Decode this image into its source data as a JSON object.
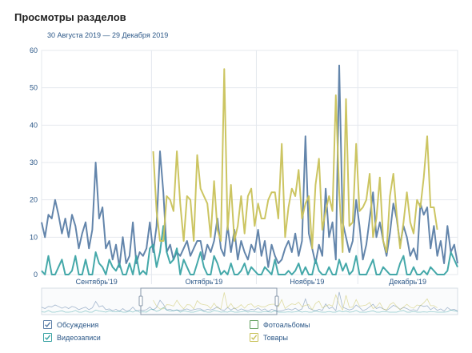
{
  "header": {
    "title": "Просмотры разделов",
    "period": "30 Августа 2019 — 29 Декабря 2019"
  },
  "legend": {
    "items": [
      {
        "label": "Обсуждения",
        "checked": true,
        "color": "#5b7ea7"
      },
      {
        "label": "Видеозаписи",
        "checked": true,
        "color": "#3aa3a4"
      },
      {
        "label": "Фотоальбомы",
        "checked": false,
        "color": "#62a05e"
      },
      {
        "label": "Товары",
        "checked": true,
        "color": "#c9c25a"
      }
    ]
  },
  "chart_data": {
    "type": "line",
    "ylim": [
      0,
      60
    ],
    "yticks": [
      0,
      10,
      20,
      30,
      40,
      50,
      60
    ],
    "month_labels": [
      "Сентябрь'19",
      "Октябрь'19",
      "Ноябрь'19",
      "Декабрь'19"
    ],
    "grid": true,
    "series": [
      {
        "name": "Обсуждения",
        "color": "#5b7ea7",
        "values": [
          14,
          10,
          16,
          15,
          20,
          16,
          11,
          15,
          10,
          16,
          13,
          7,
          11,
          14,
          7,
          12,
          30,
          15,
          18,
          7,
          9,
          4,
          8,
          2,
          10,
          3,
          5,
          14,
          3,
          6,
          5,
          7,
          14,
          6,
          13,
          33,
          22,
          6,
          8,
          4,
          6,
          5,
          7,
          9,
          5,
          7,
          9,
          9,
          4,
          8,
          6,
          9,
          15,
          7,
          5,
          13,
          6,
          12,
          4,
          9,
          6,
          4,
          8,
          6,
          12,
          5,
          9,
          2,
          8,
          5,
          3,
          4,
          7,
          9,
          6,
          11,
          5,
          9,
          37,
          11,
          7,
          3,
          8,
          5,
          23,
          10,
          14,
          4,
          56,
          14,
          10,
          6,
          9,
          20,
          13,
          4,
          8,
          15,
          22,
          10,
          14,
          9,
          5,
          11,
          19,
          15,
          8,
          13,
          10,
          5,
          7,
          4,
          19,
          16,
          18,
          7,
          13,
          5,
          9,
          3,
          13,
          6,
          8,
          3
        ]
      },
      {
        "name": "Видеозаписи",
        "color": "#3aa3a4",
        "values": [
          1,
          0,
          5,
          0,
          0,
          2,
          4,
          0,
          0,
          1,
          5,
          0,
          0,
          4,
          0,
          0,
          6,
          3,
          2,
          0,
          4,
          2,
          1,
          3,
          0,
          0,
          3,
          0,
          5,
          0,
          1,
          0,
          7,
          8,
          2,
          6,
          13,
          6,
          3,
          4,
          7,
          0,
          4,
          2,
          0,
          0,
          3,
          6,
          2,
          0,
          0,
          5,
          3,
          0,
          1,
          0,
          3,
          0,
          0,
          1,
          3,
          0,
          2,
          1,
          0,
          0,
          2,
          1,
          0,
          4,
          0,
          0,
          0,
          1,
          0,
          1,
          3,
          0,
          2,
          0,
          0,
          4,
          1,
          0,
          0,
          2,
          0,
          0,
          4,
          1,
          3,
          0,
          1,
          5,
          0,
          0,
          0,
          2,
          4,
          0,
          0,
          2,
          1,
          0,
          0,
          0,
          3,
          5,
          0,
          0,
          2,
          0,
          0,
          1,
          0,
          2,
          1,
          0,
          0,
          0,
          1,
          6,
          4,
          2
        ]
      },
      {
        "name": "Товары",
        "color": "#c9c25a",
        "start": 33,
        "values": [
          33,
          17,
          9,
          9,
          21,
          20,
          17,
          33,
          19,
          9,
          21,
          20,
          9,
          32,
          23,
          21,
          19,
          10,
          25,
          12,
          9,
          55,
          12,
          24,
          9,
          13,
          21,
          11,
          21,
          23,
          13,
          19,
          15,
          15,
          20,
          22,
          22,
          15,
          35,
          10,
          18,
          23,
          21,
          28,
          15,
          19,
          21,
          7,
          24,
          31,
          12,
          17,
          21,
          17,
          48,
          22,
          6,
          47,
          13,
          14,
          35,
          17,
          18,
          20,
          27,
          10,
          15,
          26,
          9,
          6,
          21,
          27,
          16,
          7,
          14,
          22,
          14,
          11,
          20,
          18,
          26,
          37,
          18,
          18,
          12
        ]
      }
    ]
  }
}
